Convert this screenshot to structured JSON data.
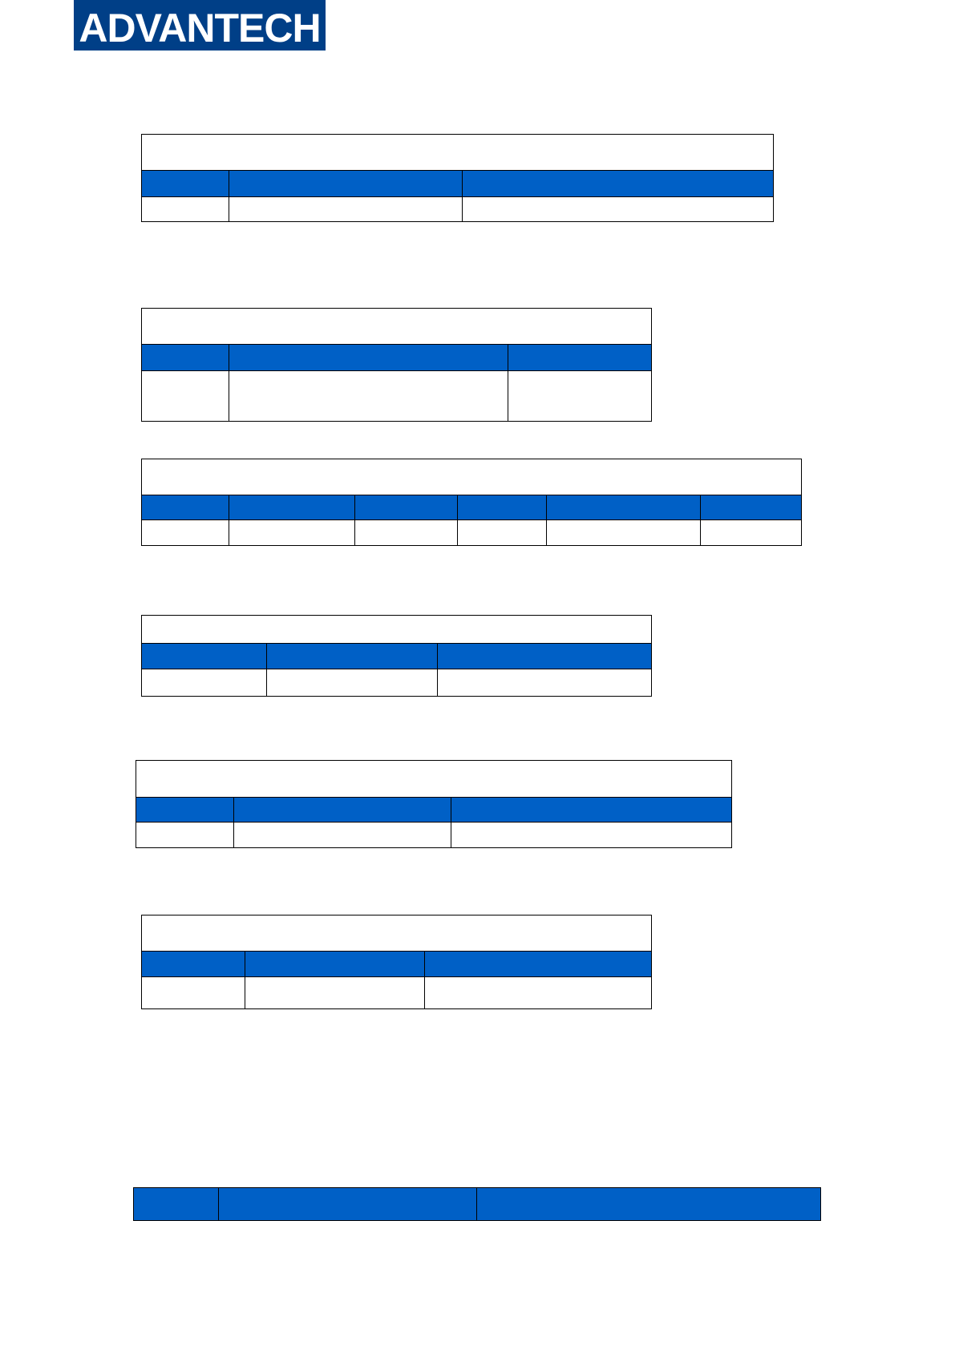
{
  "header": {
    "logo_text": "ADVANTECH",
    "logo_color": "#003f87"
  },
  "colors": {
    "table_header": "#0060c6",
    "border": "#000000"
  },
  "tables": [
    {
      "title": "",
      "headers": [
        "",
        "",
        ""
      ],
      "rows": [
        [
          "",
          "",
          ""
        ]
      ]
    },
    {
      "title": "",
      "headers": [
        "",
        "",
        ""
      ],
      "rows": [
        [
          "",
          "",
          ""
        ]
      ]
    },
    {
      "title": "",
      "headers": [
        "",
        "",
        "",
        "",
        "",
        ""
      ],
      "rows": [
        [
          "",
          "",
          "",
          "",
          "",
          ""
        ]
      ]
    },
    {
      "title": "",
      "headers": [
        "",
        "",
        ""
      ],
      "rows": [
        [
          "",
          "",
          ""
        ]
      ]
    },
    {
      "title": "",
      "headers": [
        "",
        "",
        ""
      ],
      "rows": [
        [
          "",
          "",
          ""
        ]
      ]
    },
    {
      "title": "",
      "headers": [
        "",
        "",
        ""
      ],
      "rows": [
        [
          "",
          "",
          ""
        ]
      ]
    },
    {
      "headers": [
        "",
        "",
        ""
      ],
      "rows": []
    }
  ]
}
